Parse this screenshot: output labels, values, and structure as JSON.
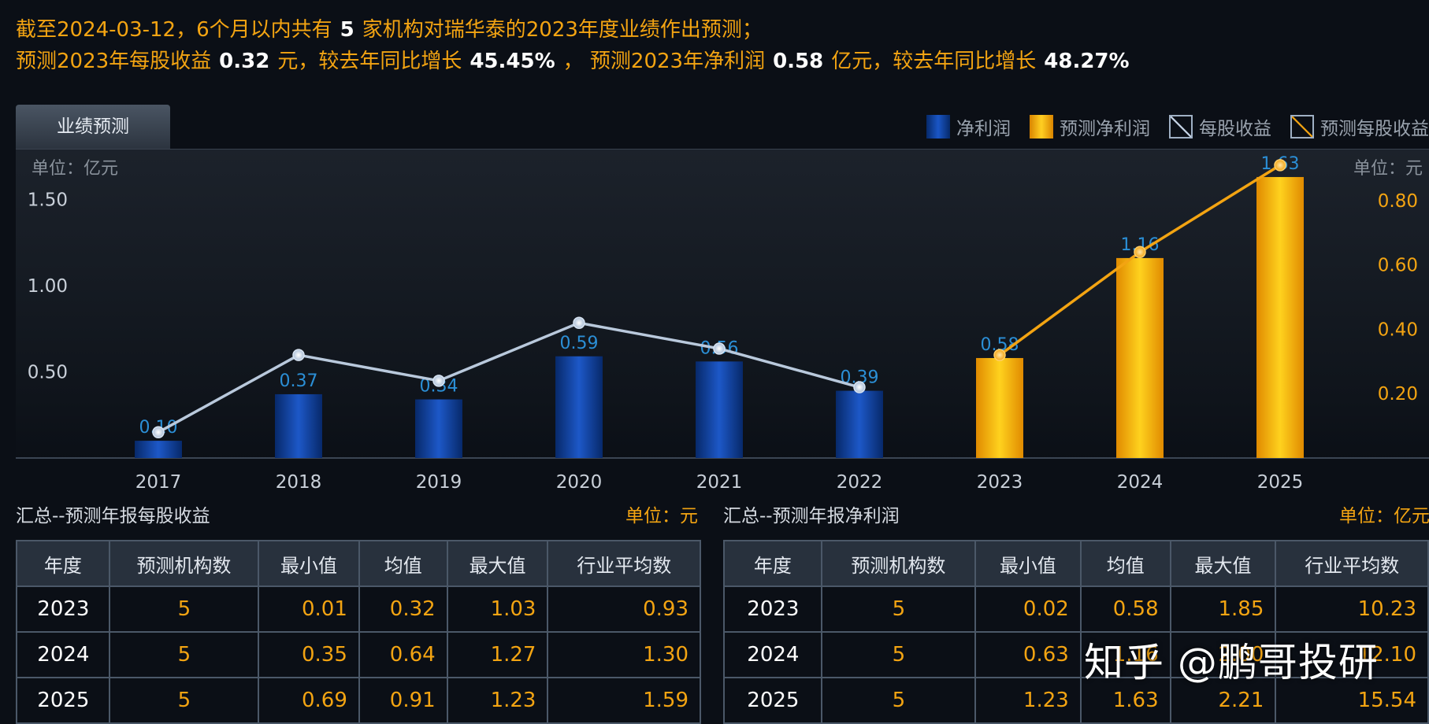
{
  "header": {
    "line1": {
      "pre": "截至2024-03-12，6个月以内共有",
      "count": "5",
      "post": "家机构对瑞华泰的2023年度业绩作出预测；"
    },
    "line2": {
      "a": "预测2023年每股收益",
      "eps": "0.32",
      "b": "元，较去年同比增长",
      "eps_growth": "45.45%",
      "c": "，",
      "d": "预测2023年净利润",
      "np": "0.58",
      "e": "亿元，较去年同比增长",
      "np_growth": "48.27%"
    }
  },
  "chart": {
    "tab_label": "业绩预测",
    "legend": [
      "净利润",
      "预测净利润",
      "每股收益",
      "预测每股收益"
    ],
    "unit_left": "单位：亿元",
    "unit_right": "单位：元"
  },
  "chart_data": {
    "type": "bar",
    "categories": [
      "2017",
      "2018",
      "2019",
      "2020",
      "2021",
      "2022",
      "2023",
      "2024",
      "2025"
    ],
    "series": [
      {
        "name": "净利润",
        "axis": "left",
        "values": [
          0.1,
          0.37,
          0.34,
          0.59,
          0.56,
          0.39,
          null,
          null,
          null
        ],
        "color": "#1a4fb8"
      },
      {
        "name": "预测净利润",
        "axis": "left",
        "values": [
          null,
          null,
          null,
          null,
          null,
          null,
          0.58,
          1.16,
          1.63
        ],
        "color": "#f5b10a"
      },
      {
        "name": "每股收益",
        "type": "line",
        "axis": "right",
        "values": [
          0.08,
          0.32,
          0.24,
          0.42,
          0.34,
          0.22,
          null,
          null,
          null
        ],
        "color": "#b9c9dc"
      },
      {
        "name": "预测每股收益",
        "type": "line",
        "axis": "right",
        "values": [
          null,
          null,
          null,
          null,
          null,
          null,
          0.32,
          0.64,
          0.91
        ],
        "color": "#f3a412"
      }
    ],
    "bar_labels": [
      "0.10",
      "0.37",
      "0.34",
      "0.59",
      "0.56",
      "0.39",
      "0.58",
      "1.16",
      "1.63"
    ],
    "yticks_left": [
      "0.50",
      "1.00",
      "1.50"
    ],
    "yticks_right": [
      "0.20",
      "0.40",
      "0.60",
      "0.80"
    ],
    "ylim_left": [
      0,
      1.68
    ],
    "ylim_right": [
      0,
      0.9
    ],
    "grid": false,
    "legend_position": "top-right"
  },
  "eps_table": {
    "title": "汇总--预测年报每股收益",
    "unit": "单位：元",
    "headers": [
      "年度",
      "预测机构数",
      "最小值",
      "均值",
      "最大值",
      "行业平均数"
    ],
    "rows": [
      [
        "2023",
        "5",
        "0.01",
        "0.32",
        "1.03",
        "0.93"
      ],
      [
        "2024",
        "5",
        "0.35",
        "0.64",
        "1.27",
        "1.30"
      ],
      [
        "2025",
        "5",
        "0.69",
        "0.91",
        "1.23",
        "1.59"
      ]
    ]
  },
  "np_table": {
    "title": "汇总--预测年报净利润",
    "unit": "单位：亿元",
    "headers": [
      "年度",
      "预测机构数",
      "最小值",
      "均值",
      "最大值",
      "行业平均数"
    ],
    "rows": [
      [
        "2023",
        "5",
        "0.02",
        "0.58",
        "1.85",
        "10.23"
      ],
      [
        "2024",
        "5",
        "0.63",
        "1.16",
        "2.00",
        "12.10"
      ],
      [
        "2025",
        "5",
        "1.23",
        "1.63",
        "2.21",
        "15.54"
      ]
    ]
  },
  "watermark": "知乎 @鹏哥投研",
  "colors": {
    "accent": "#f3a412",
    "bar_blue": "#1a4fb8",
    "bar_gold": "#f5b10a"
  }
}
